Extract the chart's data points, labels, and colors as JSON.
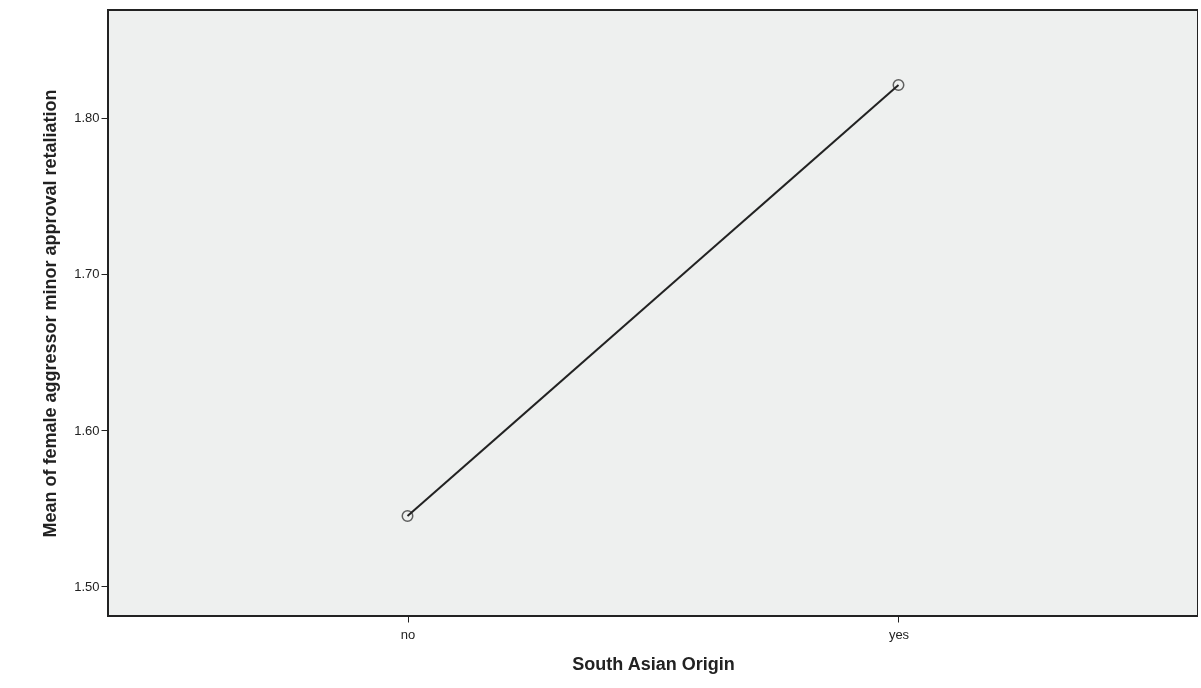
{
  "chart_data": {
    "type": "line",
    "xlabel": "South Asian Origin",
    "ylabel": "Mean of female aggressor minor approval retaliation",
    "categories": [
      "no",
      "yes"
    ],
    "series": [
      {
        "color": "#222222",
        "values": [
          1.545,
          1.821
        ]
      }
    ],
    "ylim": [
      1.481,
      1.869
    ],
    "yticks": [
      {
        "value": 1.5,
        "label": "1.50"
      },
      {
        "value": 1.6,
        "label": "1.60"
      },
      {
        "value": 1.7,
        "label": "1.70"
      },
      {
        "value": 1.8,
        "label": "1.80"
      }
    ],
    "marker": "circle",
    "line_style": "solid"
  }
}
